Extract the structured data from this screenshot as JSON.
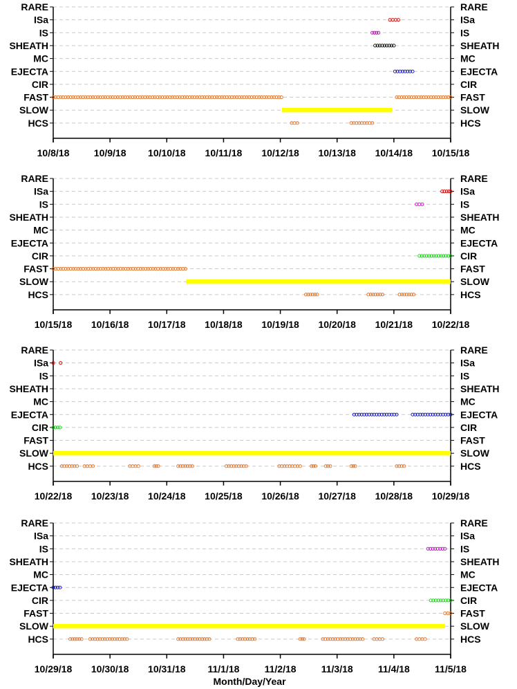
{
  "chart_data": {
    "type": "scatter",
    "xlabel": "Month/Day/Year",
    "categories": [
      "RARE",
      "ISa",
      "IS",
      "SHEATH",
      "MC",
      "EJECTA",
      "CIR",
      "FAST",
      "SLOW",
      "HCS"
    ],
    "colors": {
      "RARE": "#000000",
      "ISa": "#d40000",
      "IS": "#cc00cc",
      "SHEATH": "#000000",
      "MC": "#000000",
      "EJECTA": "#0000cc",
      "CIR": "#00dd00",
      "FAST": "#e07020",
      "SLOW": "#ffff00",
      "HCS": "#e07020"
    },
    "grid": "horizontal-dashed",
    "panels": [
      {
        "xlim": [
          0,
          7
        ],
        "tick_labels": [
          "10/8/18",
          "10/9/18",
          "10/10/18",
          "10/11/18",
          "10/12/18",
          "10/13/18",
          "10/14/18",
          "10/15/18"
        ],
        "series": [
          {
            "category": "ISa",
            "ranges": [
              [
                5.93,
                6.08
              ]
            ]
          },
          {
            "category": "IS",
            "ranges": [
              [
                5.62,
                5.73
              ]
            ]
          },
          {
            "category": "SHEATH",
            "ranges": [
              [
                5.67,
                6.0
              ]
            ]
          },
          {
            "category": "EJECTA",
            "ranges": [
              [
                6.02,
                6.33
              ]
            ]
          },
          {
            "category": "FAST",
            "ranges": [
              [
                0,
                4.02
              ],
              [
                6.05,
                7.0
              ]
            ]
          },
          {
            "category": "SLOW",
            "ranges": [
              [
                4.03,
                5.97
              ]
            ],
            "solid": true
          },
          {
            "category": "HCS",
            "ranges": [
              [
                4.2,
                4.3
              ],
              [
                5.25,
                5.62
              ]
            ]
          }
        ]
      },
      {
        "xlim": [
          0,
          7
        ],
        "tick_labels": [
          "10/15/18",
          "10/16/18",
          "10/17/18",
          "10/18/18",
          "10/19/18",
          "10/20/18",
          "10/21/18",
          "10/22/18"
        ],
        "series": [
          {
            "category": "ISa",
            "ranges": [
              [
                6.85,
                6.97
              ],
              [
                7.0,
                7.0
              ]
            ]
          },
          {
            "category": "IS",
            "ranges": [
              [
                6.4,
                6.5
              ]
            ]
          },
          {
            "category": "CIR",
            "ranges": [
              [
                6.45,
                7.0
              ]
            ]
          },
          {
            "category": "FAST",
            "ranges": [
              [
                0,
                2.33
              ]
            ]
          },
          {
            "category": "SLOW",
            "ranges": [
              [
                2.34,
                7.0
              ]
            ],
            "solid": true
          },
          {
            "category": "HCS",
            "ranges": [
              [
                4.45,
                4.65
              ],
              [
                5.55,
                5.8
              ],
              [
                6.1,
                6.35
              ]
            ]
          }
        ]
      },
      {
        "xlim": [
          0,
          7
        ],
        "tick_labels": [
          "10/22/18",
          "10/23/18",
          "10/24/18",
          "10/25/18",
          "10/26/18",
          "10/27/18",
          "10/28/18",
          "10/29/18"
        ],
        "series": [
          {
            "category": "ISa",
            "ranges": [
              [
                0.0,
                0.0
              ],
              [
                0.13,
                0.13
              ]
            ]
          },
          {
            "category": "EJECTA",
            "ranges": [
              [
                5.3,
                6.05
              ],
              [
                6.33,
                7.0
              ]
            ]
          },
          {
            "category": "CIR",
            "ranges": [
              [
                0.0,
                0.12
              ]
            ]
          },
          {
            "category": "SLOW",
            "ranges": [
              [
                0,
                7.0
              ]
            ],
            "solid": true
          },
          {
            "category": "HCS",
            "ranges": [
              [
                0.15,
                0.42
              ],
              [
                0.55,
                0.7
              ],
              [
                1.35,
                1.5
              ],
              [
                1.78,
                1.85
              ],
              [
                2.2,
                2.45
              ],
              [
                3.05,
                3.4
              ],
              [
                3.98,
                4.35
              ],
              [
                4.55,
                4.62
              ],
              [
                4.8,
                4.88
              ],
              [
                5.25,
                5.32
              ],
              [
                6.05,
                6.18
              ]
            ]
          }
        ]
      },
      {
        "xlim": [
          0,
          7
        ],
        "tick_labels": [
          "10/29/18",
          "10/30/18",
          "10/31/18",
          "11/1/18",
          "11/2/18",
          "11/3/18",
          "11/4/18",
          "11/5/18"
        ],
        "series": [
          {
            "category": "IS",
            "ranges": [
              [
                6.6,
                6.9
              ]
            ]
          },
          {
            "category": "EJECTA",
            "ranges": [
              [
                0.0,
                0.12
              ]
            ]
          },
          {
            "category": "CIR",
            "ranges": [
              [
                6.65,
                7.0
              ]
            ]
          },
          {
            "category": "FAST",
            "ranges": [
              [
                6.9,
                7.0
              ]
            ]
          },
          {
            "category": "SLOW",
            "ranges": [
              [
                0,
                6.9
              ]
            ],
            "solid": true
          },
          {
            "category": "HCS",
            "ranges": [
              [
                0.3,
                0.5
              ],
              [
                0.65,
                1.3
              ],
              [
                2.2,
                2.75
              ],
              [
                3.25,
                3.55
              ],
              [
                4.35,
                4.42
              ],
              [
                4.75,
                5.45
              ],
              [
                5.65,
                5.8
              ],
              [
                6.4,
                6.55
              ]
            ]
          }
        ]
      }
    ]
  }
}
